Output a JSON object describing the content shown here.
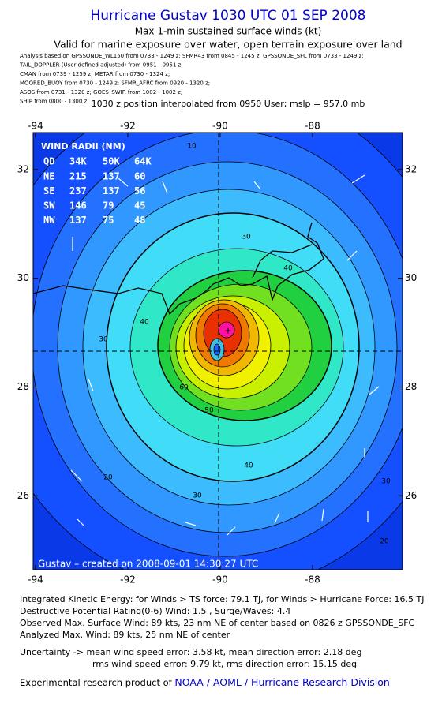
{
  "header": {
    "title": "Hurricane Gustav 1030 UTC 01 SEP 2008",
    "subtitle": "Max 1-min sustained surface winds (kt)",
    "valid": "Valid for marine exposure over water, open terrain exposure over land",
    "sources": [
      "Analysis based on  GPSSONDE_WL150 from 0733 - 1249 z;  SFMR43 from 0845 - 1245 z;  GPSSONDE_SFC from 0733 - 1249 z;",
      "TAIL_DOPPLER (User-defined adjusted) from 0951 - 0951 z;",
      "CMAN from 0739 - 1259 z;  METAR from 0730 - 1324 z;",
      "MOORED_BUOY from 0730 - 1249 z;  SFMR_AFRC from 0920 - 1320 z;",
      "ASOS from 0731 - 1320 z;  GOES_SWIR from 1002 - 1002 z;",
      "SHIP from 0800 - 1300 z;"
    ],
    "position": "1030 z position interpolated from 0950 User; mslp = 957.0 mb"
  },
  "map": {
    "xlim": [
      -94.05,
      -86.05
    ],
    "ylim": [
      24.64,
      32.68
    ],
    "xticks": [
      -94,
      -92,
      -90,
      -88
    ],
    "yticks": [
      26,
      28,
      30,
      32
    ],
    "center": [
      -90,
      28.65
    ],
    "radii": {
      "title": "WIND RADII (NM)",
      "header": [
        "QD",
        "34K",
        "50K",
        "64K"
      ],
      "rows": [
        [
          "NE",
          "215",
          "137",
          "60"
        ],
        [
          "SE",
          "237",
          "137",
          "56"
        ],
        [
          "SW",
          "146",
          "79",
          "45"
        ],
        [
          "NW",
          "137",
          "75",
          "48"
        ]
      ]
    },
    "contour_labels": [
      "10",
      "20",
      "20",
      "30",
      "30",
      "30",
      "30",
      "40",
      "40",
      "40",
      "50",
      "60"
    ],
    "credit": "Gustav – created on 2008-09-01 14:30:27 UTC"
  },
  "footer": {
    "lines": [
      "Integrated Kinetic Energy:  for Winds > TS force: 79.1 TJ,  for Winds > Hurricane Force: 16.5 TJ",
      "Destructive Potential Rating(0-6)   Wind: 1.5 , Surge/Waves: 4.4",
      "Observed Max. Surface Wind: 89 kts, 23 nm NE of center based on 0826 z GPSSONDE_SFC",
      "Analyzed Max. Wind: 89 kts, 25 nm NE of center",
      "Uncertainty -> mean wind speed error: 3.58 kt,   mean direction error: 2.18 deg",
      "rms wind speed error: 9.79 kt,   rms direction error: 15.15 deg"
    ],
    "product": "Experimental research product of",
    "org": "NOAA / AOML / Hurricane Research Division"
  }
}
